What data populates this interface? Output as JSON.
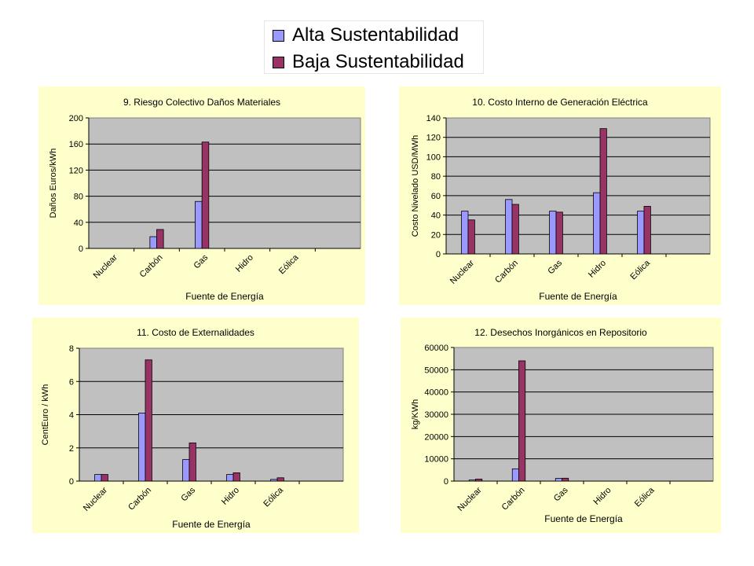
{
  "legend": {
    "items": [
      {
        "label": "Alta Sustentabilidad",
        "color": "#9999ff"
      },
      {
        "label": "Baja Sustentabilidad",
        "color": "#993366"
      }
    ]
  },
  "colors": {
    "panel_bg": "#ffffcc",
    "plot_bg": "#c0c0c0",
    "alta": "#9999ff",
    "baja": "#993366"
  },
  "chart_data": [
    {
      "type": "bar",
      "title": "9. Riesgo Colectivo Daños Materiales",
      "xlabel": "Fuente de Energía",
      "ylabel": "Daños Euros/kWh",
      "categories": [
        "Nuclear",
        "Carbón",
        "Gas",
        "Hidro",
        "Eólica"
      ],
      "ylim": [
        0,
        200
      ],
      "yticks": [
        "0",
        "40",
        "80",
        "120",
        "160",
        "200"
      ],
      "grid": true,
      "series": [
        {
          "name": "Alta Sustentabilidad",
          "values": [
            0,
            18,
            72,
            0,
            0
          ]
        },
        {
          "name": "Baja Sustentabilidad",
          "values": [
            0,
            29,
            163,
            0,
            0
          ]
        }
      ]
    },
    {
      "type": "bar",
      "title": "10. Costo Interno de Generación Eléctrica",
      "xlabel": "Fuente de Energía",
      "ylabel": "Costo Nivelado USD/MWh",
      "categories": [
        "Nuclear",
        "Carbón",
        "Gas",
        "Hidro",
        "Eólica"
      ],
      "ylim": [
        0,
        140
      ],
      "yticks": [
        "0",
        "20",
        "40",
        "60",
        "80",
        "100",
        "120",
        "140"
      ],
      "grid": true,
      "series": [
        {
          "name": "Alta Sustentabilidad",
          "values": [
            44,
            56,
            44,
            63,
            44
          ]
        },
        {
          "name": "Baja Sustentabilidad",
          "values": [
            35,
            51,
            43,
            129,
            49
          ]
        }
      ]
    },
    {
      "type": "bar",
      "title": "11. Costo de Externalidades",
      "xlabel": "Fuente de Energía",
      "ylabel": "CentEuro / kWh",
      "categories": [
        "Nuclear",
        "Carbón",
        "Gas",
        "Hidro",
        "Eólica"
      ],
      "ylim": [
        0,
        8
      ],
      "yticks": [
        "0",
        "2",
        "4",
        "6",
        "8"
      ],
      "grid": true,
      "series": [
        {
          "name": "Alta Sustentabilidad",
          "values": [
            0.4,
            4.1,
            1.3,
            0.4,
            0.1
          ]
        },
        {
          "name": "Baja Sustentabilidad",
          "values": [
            0.4,
            7.3,
            2.3,
            0.5,
            0.2
          ]
        }
      ]
    },
    {
      "type": "bar",
      "title": "12. Desechos Inorgánicos en Repositorio",
      "xlabel": "Fuente de Energía",
      "ylabel": "kg/KWh",
      "categories": [
        "Nuclear",
        "Carbón",
        "Gas",
        "Hidro",
        "Eólica"
      ],
      "ylim": [
        0,
        60000
      ],
      "yticks": [
        "0",
        "10000",
        "20000",
        "30000",
        "40000",
        "50000",
        "60000"
      ],
      "grid": true,
      "series": [
        {
          "name": "Alta Sustentabilidad",
          "values": [
            500,
            5500,
            1200,
            0,
            0
          ]
        },
        {
          "name": "Baja Sustentabilidad",
          "values": [
            900,
            54000,
            1300,
            0,
            0
          ]
        }
      ]
    }
  ]
}
